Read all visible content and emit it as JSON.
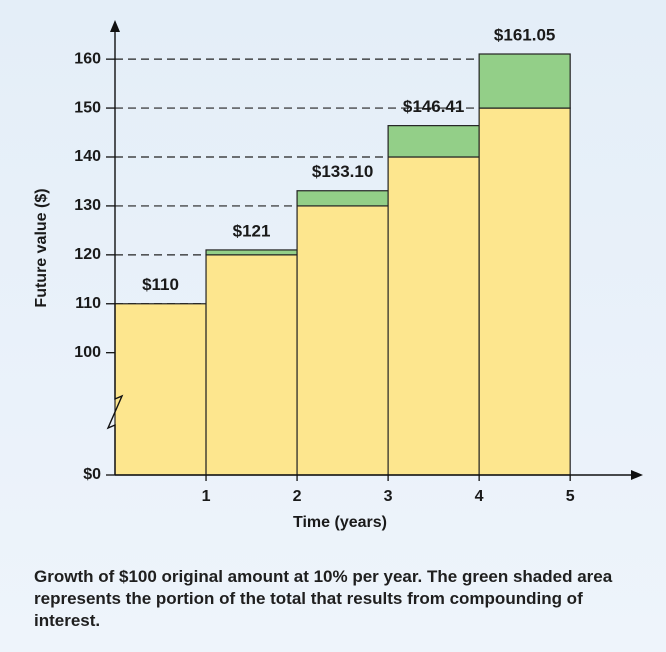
{
  "chart_data": {
    "type": "bar",
    "stacked": true,
    "x": [
      1,
      2,
      3,
      4,
      5
    ],
    "series": [
      {
        "color": "#fde68e",
        "values": [
          110,
          120,
          130,
          140,
          150
        ]
      },
      {
        "color": "#93cf88",
        "values": [
          0,
          1,
          3.1,
          6.41,
          11.05
        ]
      }
    ],
    "totals": {
      "values": [
        110,
        121,
        133.1,
        146.41,
        161.05
      ],
      "value_labels": [
        "$110",
        "$121",
        "$133.10",
        "$146.41",
        "$161.05"
      ]
    },
    "xlabel": "Time (years)",
    "ylabel": "Future value ($)",
    "xlim": [
      0,
      5.8
    ],
    "xticks": [
      1,
      2,
      3,
      4,
      5
    ],
    "ylim": [
      0,
      168
    ],
    "axis_break": [
      0,
      75
    ],
    "yticks": [
      {
        "value": 0,
        "label": "$0"
      },
      100,
      110,
      120,
      130,
      140,
      150,
      160
    ],
    "grid": "dashed"
  },
  "caption": "Growth of $100 original amount at 10% per year. The green shaded area represents the portion of the total that results from compounding of interest."
}
